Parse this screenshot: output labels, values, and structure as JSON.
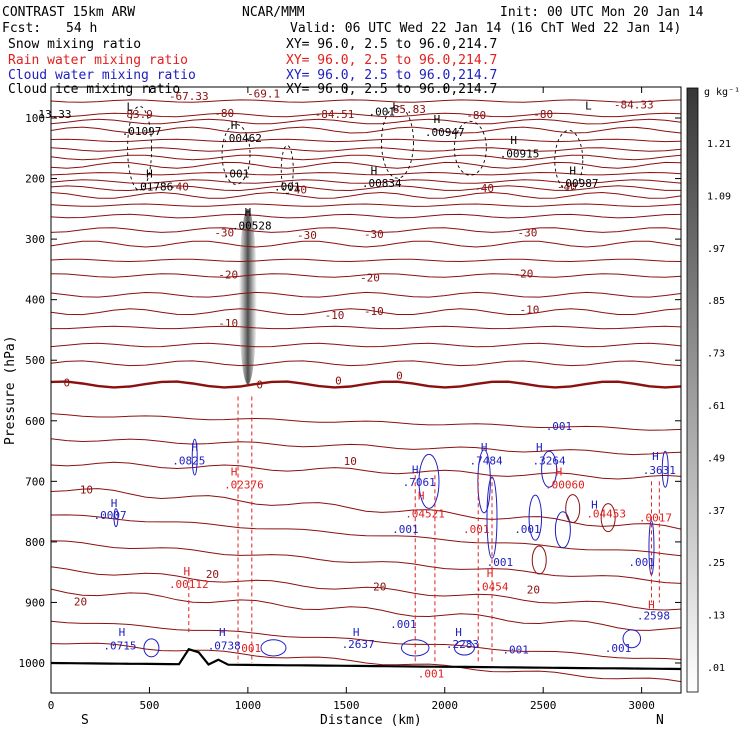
{
  "header": {
    "model": "CONTRAST 15km ARW",
    "center": "NCAR/MMM",
    "init": "Init: 00 UTC Mon 20 Jan 14",
    "fcst_label": "Fcst:",
    "fcst_value": "54 h",
    "valid": "Valid: 06 UTC Wed 22 Jan 14 (16 ChT Wed 22 Jan 14)"
  },
  "fields": [
    {
      "name": "Snow mixing ratio",
      "xy": "XY=  96.0,  2.5 to  96.0,214.7",
      "color": "#000000"
    },
    {
      "name": "Rain water mixing ratio",
      "xy": "XY=  96.0,  2.5 to  96.0,214.7",
      "color": "#e02020"
    },
    {
      "name": "Cloud water mixing ratio",
      "xy": "XY=  96.0,  2.5 to  96.0,214.7",
      "color": "#2020c0"
    },
    {
      "name": "Cloud ice mixing ratio",
      "xy": "XY=  96.0,  2.5 to  96.0,214.7",
      "color": "#000000"
    }
  ],
  "chart_data": {
    "type": "cross-section",
    "xlabel": "Distance (km)",
    "ylabel": "Pressure (hPa)",
    "xlim": [
      0,
      3200
    ],
    "ylim": [
      1000,
      50
    ],
    "x_ticks": [
      0,
      500,
      1000,
      1500,
      2000,
      2500,
      3000
    ],
    "y_ticks": [
      100,
      200,
      300,
      400,
      500,
      600,
      700,
      800,
      900,
      1000
    ],
    "end_labels": {
      "left": "S",
      "right": "N"
    },
    "colorbar": {
      "unit": "g kg⁻¹",
      "levels": [
        ".01",
        ".13",
        ".25",
        ".37",
        ".49",
        ".61",
        ".73",
        ".85",
        ".97",
        "1.09",
        "1.21"
      ]
    },
    "temperature_labels": [
      {
        "text": "-67.33",
        "x": 700,
        "p": 70
      },
      {
        "text": "-69.1",
        "x": 1080,
        "p": 66
      },
      {
        "text": "-84.51",
        "x": 1440,
        "p": 100
      },
      {
        "text": "85.83",
        "x": 1820,
        "p": 92
      },
      {
        "text": "-84.33",
        "x": 2960,
        "p": 84
      },
      {
        "text": "83.9",
        "x": 450,
        "p": 100
      },
      {
        "text": "-80",
        "x": 880,
        "p": 98
      },
      {
        "text": "-80",
        "x": 2160,
        "p": 102
      },
      {
        "text": "-80",
        "x": 2500,
        "p": 100
      },
      {
        "text": "-40",
        "x": 650,
        "p": 220
      },
      {
        "text": "-40",
        "x": 1250,
        "p": 225
      },
      {
        "text": "-40",
        "x": 2200,
        "p": 222
      },
      {
        "text": "-40",
        "x": 2620,
        "p": 220
      },
      {
        "text": "-30",
        "x": 880,
        "p": 296
      },
      {
        "text": "-30",
        "x": 1300,
        "p": 300
      },
      {
        "text": "-30",
        "x": 1640,
        "p": 298
      },
      {
        "text": "-30",
        "x": 2420,
        "p": 296
      },
      {
        "text": "-20",
        "x": 900,
        "p": 365
      },
      {
        "text": "-20",
        "x": 1620,
        "p": 370
      },
      {
        "text": "-20",
        "x": 2400,
        "p": 363
      },
      {
        "text": "-10",
        "x": 900,
        "p": 445
      },
      {
        "text": "-10",
        "x": 1440,
        "p": 432
      },
      {
        "text": "-10",
        "x": 1640,
        "p": 425
      },
      {
        "text": "-10",
        "x": 2430,
        "p": 423
      },
      {
        "text": "0",
        "x": 80,
        "p": 543
      },
      {
        "text": "0",
        "x": 1060,
        "p": 547
      },
      {
        "text": "0",
        "x": 1460,
        "p": 540
      },
      {
        "text": "0",
        "x": 1770,
        "p": 532
      },
      {
        "text": "10",
        "x": 1520,
        "p": 673
      },
      {
        "text": "10",
        "x": 180,
        "p": 720
      },
      {
        "text": "20",
        "x": 820,
        "p": 860
      },
      {
        "text": "20",
        "x": 1670,
        "p": 880
      },
      {
        "text": "20",
        "x": 2450,
        "p": 885
      },
      {
        "text": "20",
        "x": 150,
        "p": 905
      }
    ],
    "cloud_water_labels": [
      {
        "text": "H",
        "x": 730,
        "p": 650
      },
      {
        "text": ".0825",
        "x": 700,
        "p": 672
      },
      {
        "text": "H",
        "x": 320,
        "p": 742
      },
      {
        "text": ".0007",
        "x": 300,
        "p": 762
      },
      {
        "text": "H",
        "x": 360,
        "p": 955
      },
      {
        "text": ".0715",
        "x": 350,
        "p": 978
      },
      {
        "text": "H",
        "x": 870,
        "p": 955
      },
      {
        "text": ".0738",
        "x": 880,
        "p": 978
      },
      {
        "text": ".001",
        "x": 1790,
        "p": 942
      },
      {
        "text": "H",
        "x": 1550,
        "p": 955
      },
      {
        "text": ".2637",
        "x": 1560,
        "p": 975
      },
      {
        "text": "H",
        "x": 2070,
        "p": 955
      },
      {
        "text": ".2283",
        "x": 2090,
        "p": 975
      },
      {
        "text": ".001",
        "x": 2360,
        "p": 984
      },
      {
        "text": ".001",
        "x": 2880,
        "p": 982
      },
      {
        "text": "H",
        "x": 2200,
        "p": 650
      },
      {
        "text": ".7484",
        "x": 2210,
        "p": 672
      },
      {
        "text": "H",
        "x": 2480,
        "p": 650
      },
      {
        "text": ".3264",
        "x": 2530,
        "p": 672
      },
      {
        "text": ".001",
        "x": 2580,
        "p": 615
      },
      {
        "text": "H",
        "x": 1850,
        "p": 687
      },
      {
        "text": ".7061",
        "x": 1870,
        "p": 708
      },
      {
        "text": ".001",
        "x": 1800,
        "p": 785
      },
      {
        "text": ".001",
        "x": 2280,
        "p": 840
      },
      {
        "text": ".001",
        "x": 2420,
        "p": 785
      },
      {
        "text": "H",
        "x": 3070,
        "p": 665
      },
      {
        "text": ".3631",
        "x": 3090,
        "p": 688
      },
      {
        "text": ".001",
        "x": 3000,
        "p": 840
      },
      {
        "text": ".2598",
        "x": 3060,
        "p": 928
      },
      {
        "text": "H",
        "x": 2760,
        "p": 745
      }
    ],
    "rain_labels": [
      {
        "text": "H",
        "x": 930,
        "p": 690
      },
      {
        "text": ".02376",
        "x": 980,
        "p": 712
      },
      {
        "text": "H",
        "x": 1880,
        "p": 730
      },
      {
        "text": ".04521",
        "x": 1900,
        "p": 760
      },
      {
        "text": ".001",
        "x": 2160,
        "p": 785
      },
      {
        "text": "H",
        "x": 2230,
        "p": 858
      },
      {
        "text": ".0454",
        "x": 2240,
        "p": 880
      },
      {
        "text": "H",
        "x": 2580,
        "p": 690
      },
      {
        "text": ".00060",
        "x": 2610,
        "p": 712
      },
      {
        "text": ".04453",
        "x": 2820,
        "p": 760
      },
      {
        "text": ".0017",
        "x": 3070,
        "p": 766
      },
      {
        "text": "H",
        "x": 690,
        "p": 855
      },
      {
        "text": ".00112",
        "x": 700,
        "p": 876
      },
      {
        "text": ".001",
        "x": 1000,
        "p": 982
      },
      {
        "text": ".001",
        "x": 1930,
        "p": 1024
      },
      {
        "text": "H",
        "x": 3050,
        "p": 910
      }
    ],
    "ice_labels": [
      {
        "text": "L",
        "x": 400,
        "p": 88
      },
      {
        "text": ".01097",
        "x": 460,
        "p": 128
      },
      {
        "text": "H",
        "x": 930,
        "p": 118
      },
      {
        "text": ".00462",
        "x": 970,
        "p": 140
      },
      {
        "text": ".001",
        "x": 940,
        "p": 198
      },
      {
        "text": ".001",
        "x": 1200,
        "p": 220
      },
      {
        "text": "H",
        "x": 500,
        "p": 198
      },
      {
        "text": ".01786",
        "x": 520,
        "p": 220
      },
      {
        "text": "H",
        "x": 1000,
        "p": 262
      },
      {
        "text": ".00528",
        "x": 1020,
        "p": 284
      },
      {
        "text": ".001",
        "x": 1680,
        "p": 96
      },
      {
        "text": "H",
        "x": 1960,
        "p": 108
      },
      {
        "text": ".00947",
        "x": 2000,
        "p": 130
      },
      {
        "text": "H",
        "x": 2350,
        "p": 143
      },
      {
        "text": ".00915",
        "x": 2380,
        "p": 165
      },
      {
        "text": "H",
        "x": 1640,
        "p": 193
      },
      {
        "text": ".00834",
        "x": 1680,
        "p": 214
      },
      {
        "text": "H",
        "x": 2650,
        "p": 193
      },
      {
        "text": ".00987",
        "x": 2680,
        "p": 214
      },
      {
        "text": "13.33",
        "x": 20,
        "p": 100
      },
      {
        "text": "L",
        "x": 1750,
        "p": 88
      },
      {
        "text": "L",
        "x": 2730,
        "p": 86
      }
    ],
    "snow_column": {
      "x": 1000,
      "p_top": 250,
      "p_bottom": 540,
      "max": 1.0
    }
  }
}
